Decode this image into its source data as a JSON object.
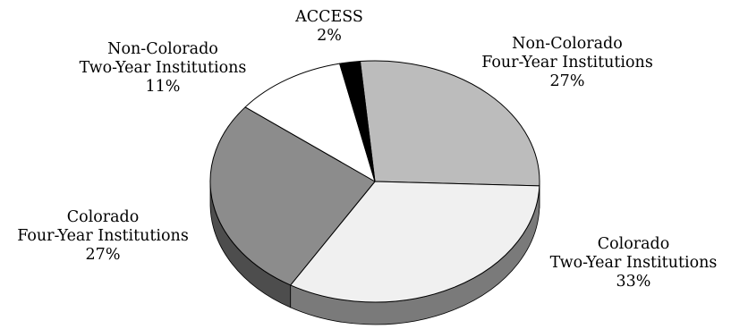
{
  "chart_data": {
    "type": "pie",
    "style": "3d",
    "title": "",
    "slices": [
      {
        "label": [
          "Non-Colorado",
          "Four-Year Institutions"
        ],
        "value": 27,
        "display": "27%",
        "color": "#bcbcbc",
        "side_color": "#8a8a8a"
      },
      {
        "label": [
          "Colorado",
          "Two-Year Institutions"
        ],
        "value": 33,
        "display": "33%",
        "color": "#f0f0f0",
        "side_color": "#7a7a7a"
      },
      {
        "label": [
          "Colorado",
          "Four-Year Institutions"
        ],
        "value": 27,
        "display": "27%",
        "color": "#8c8c8c",
        "side_color": "#4d4d4d"
      },
      {
        "label": [
          "Non-Colorado",
          "Two-Year Institutions"
        ],
        "value": 11,
        "display": "11%",
        "color": "#ffffff",
        "side_color": "#666666"
      },
      {
        "label": [
          "ACCESS"
        ],
        "value": 2,
        "display": "2%",
        "color": "#000000",
        "side_color": "#000000"
      }
    ]
  }
}
